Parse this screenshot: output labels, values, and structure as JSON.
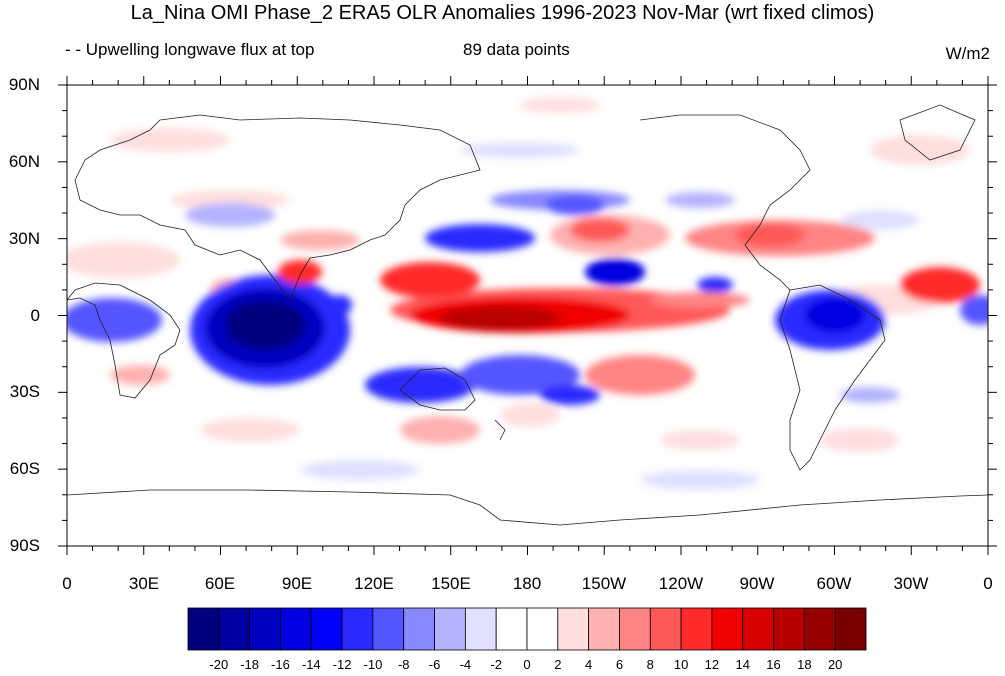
{
  "title": "La_Nina OMI Phase_2 ERA5 OLR Anomalies 1996-2023 Nov-Mar (wrt fixed climos)",
  "subtitle_left": "- - Upwelling longwave flux at top",
  "subtitle_center": "89 data points",
  "units": "W/m2",
  "lat_labels": [
    "90N",
    "60N",
    "30N",
    "0",
    "30S",
    "60S",
    "90S"
  ],
  "lon_labels": [
    "0",
    "30E",
    "60E",
    "90E",
    "120E",
    "150E",
    "180",
    "150W",
    "120W",
    "90W",
    "60W",
    "30W",
    "0"
  ],
  "colorbar": {
    "labels": [
      "-20",
      "-18",
      "-16",
      "-14",
      "-12",
      "-10",
      "-8",
      "-6",
      "-4",
      "-2",
      "0",
      "2",
      "4",
      "6",
      "8",
      "10",
      "12",
      "14",
      "16",
      "18",
      "20"
    ],
    "colors": [
      "#00007f",
      "#0000a0",
      "#0000c0",
      "#0000e0",
      "#0000ff",
      "#2a2aff",
      "#5555ff",
      "#8888ff",
      "#b3b3ff",
      "#e0e0ff",
      "#ffffff",
      "#ffffff",
      "#ffdede",
      "#ffb0b0",
      "#ff8484",
      "#ff5858",
      "#ff2a2a",
      "#f00000",
      "#d80000",
      "#b80000",
      "#980000",
      "#7a0000"
    ]
  }
}
